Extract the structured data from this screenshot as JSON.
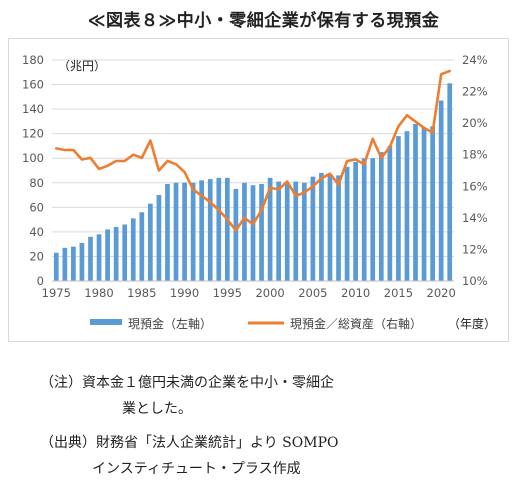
{
  "title": "≪図表８≫中小・零細企業が保有する現預金",
  "chart_data": {
    "type": "bar+line",
    "unit_left": "（兆円）",
    "unit_bottom": "（年度）",
    "x": [
      1975,
      1976,
      1977,
      1978,
      1979,
      1980,
      1981,
      1982,
      1983,
      1984,
      1985,
      1986,
      1987,
      1988,
      1989,
      1990,
      1991,
      1992,
      1993,
      1994,
      1995,
      1996,
      1997,
      1998,
      1999,
      2000,
      2001,
      2002,
      2003,
      2004,
      2005,
      2006,
      2007,
      2008,
      2009,
      2010,
      2011,
      2012,
      2013,
      2014,
      2015,
      2016,
      2017,
      2018,
      2019,
      2020,
      2021
    ],
    "x_ticks": [
      "1975",
      "1980",
      "1985",
      "1990",
      "1995",
      "2000",
      "2005",
      "2010",
      "2015",
      "2020"
    ],
    "y_left_ticks": [
      "0",
      "20",
      "40",
      "60",
      "80",
      "100",
      "120",
      "140",
      "160",
      "180"
    ],
    "y_left_range": [
      0,
      180
    ],
    "y_right_ticks": [
      "10%",
      "12%",
      "14%",
      "16%",
      "18%",
      "20%",
      "22%",
      "24%"
    ],
    "y_right_range": [
      10,
      24
    ],
    "grid": true,
    "legend_position": "bottom",
    "series": [
      {
        "name": "現預金（左軸）",
        "type": "bar",
        "axis": "left",
        "color": "#5b9bd5",
        "values": [
          23,
          27,
          28,
          31,
          36,
          38,
          42,
          44,
          46,
          51,
          56,
          63,
          70,
          79,
          80,
          80,
          80,
          82,
          83,
          84,
          84,
          75,
          80,
          78,
          79,
          84,
          81,
          80,
          81,
          80,
          85,
          88,
          87,
          86,
          93,
          97,
          100,
          100,
          105,
          110,
          118,
          122,
          128,
          125,
          126,
          147,
          161
        ]
      },
      {
        "name": "現預金／総資産（右軸）",
        "type": "line",
        "axis": "right",
        "color": "#ed7d31",
        "values": [
          18.4,
          18.3,
          18.3,
          17.7,
          17.8,
          17.1,
          17.3,
          17.6,
          17.6,
          18.0,
          17.8,
          18.9,
          17.0,
          17.6,
          17.4,
          16.9,
          15.8,
          15.4,
          15.0,
          14.5,
          13.9,
          13.2,
          14.0,
          13.6,
          14.5,
          15.9,
          15.8,
          16.3,
          15.4,
          15.6,
          16.0,
          16.5,
          16.8,
          16.1,
          17.6,
          17.7,
          17.4,
          19.0,
          17.8,
          18.5,
          19.8,
          20.5,
          20.1,
          19.7,
          19.4,
          23.1,
          23.3
        ]
      }
    ]
  },
  "notes": [
    "（注）資本金１億円未満の企業を中小・零細企",
    "業とした。",
    "（出典）財務省「法人企業統計」より SOMPO",
    "インスティチュート・プラス作成"
  ]
}
